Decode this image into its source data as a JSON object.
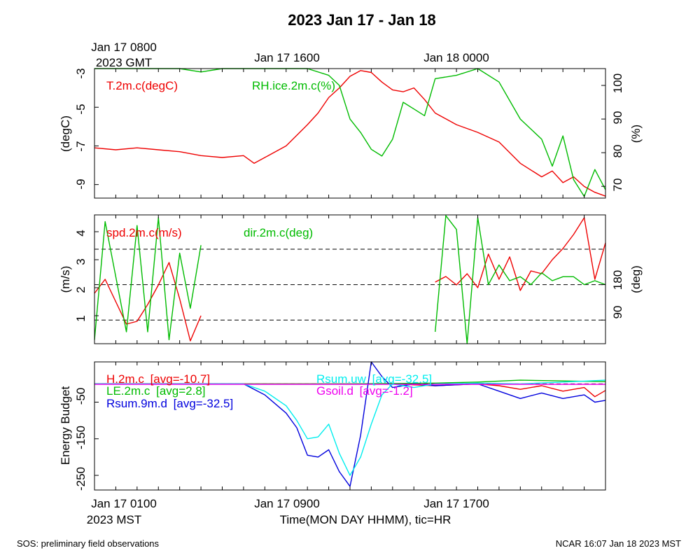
{
  "title": "2023 Jan 17 - Jan 18",
  "colors": {
    "red": "#ee0000",
    "green": "#00bb00",
    "blue": "#0000dd",
    "cyan": "#00eeee",
    "magenta": "#ee00ee",
    "black": "#000000"
  },
  "top_axis": {
    "labels": [
      "Jan 17 0800",
      "Jan 17 1600",
      "Jan 18 0000"
    ],
    "gmt_label": "2023 GMT"
  },
  "bottom_axis": {
    "labels": [
      "Jan 17 0100",
      "Jan 17 0900",
      "Jan 17 1700"
    ],
    "mst_label": "2023 MST",
    "xlabel": "Time(MON DAY HHMM), tic=HR"
  },
  "footer": {
    "left": "SOS: preliminary field observations",
    "right": "NCAR 16:07 Jan 18 2023 MST"
  },
  "chart_data": [
    {
      "type": "line",
      "xlim": [
        0,
        24
      ],
      "ylabel": "(degC)",
      "ylabel_right": "(%)",
      "ylim": [
        -9.7,
        -3
      ],
      "yticks": [
        "-3",
        "-5",
        "-7",
        "-9"
      ],
      "ylim_right": [
        66.5,
        105
      ],
      "yticks_right": [
        "100",
        "90",
        "80",
        "70"
      ],
      "series": [
        {
          "name": "T.2m.c(degC)",
          "axis": "left",
          "color": "red",
          "x": [
            0,
            1,
            2,
            3,
            4,
            5,
            6,
            7,
            7.5,
            8,
            9,
            10,
            10.5,
            11,
            11.5,
            12,
            12.5,
            13,
            13.5,
            14,
            14.5,
            15,
            15.5,
            16,
            16.5,
            17,
            18,
            19,
            20,
            21,
            21.5,
            22,
            22.5,
            23,
            23.5,
            24
          ],
          "y": [
            -7.1,
            -7.2,
            -7.1,
            -7.2,
            -7.3,
            -7.5,
            -7.6,
            -7.5,
            -7.9,
            -7.6,
            -7.0,
            -5.9,
            -5.3,
            -4.5,
            -4.0,
            -3.4,
            -3.1,
            -3.2,
            -3.7,
            -4.1,
            -4.2,
            -4.0,
            -4.6,
            -5.3,
            -5.6,
            -5.9,
            -6.3,
            -6.8,
            -7.9,
            -8.6,
            -8.3,
            -8.9,
            -8.6,
            -9.1,
            -9.4,
            -9.6
          ]
        },
        {
          "name": "RH.ice.2m.c(%)",
          "axis": "right",
          "color": "green",
          "x": [
            0,
            4,
            5,
            6,
            8,
            10,
            11,
            11.5,
            12,
            12.5,
            13,
            13.5,
            14,
            14.5,
            15,
            15.5,
            16,
            17,
            18,
            19,
            20,
            21,
            21.5,
            22,
            22.5,
            23,
            23.5,
            24
          ],
          "y": [
            105,
            105,
            104,
            105,
            105,
            105,
            103,
            100,
            90,
            86,
            81,
            79,
            84,
            95,
            93,
            91,
            102,
            103,
            105,
            101,
            90,
            84,
            76,
            85,
            72,
            67,
            75,
            69
          ]
        }
      ]
    },
    {
      "type": "line",
      "xlim": [
        0,
        24
      ],
      "ylabel": "(m/s)",
      "ylabel_right": "(deg)",
      "ylim": [
        0,
        4.6
      ],
      "yticks": [
        "1",
        "2",
        "3",
        "4"
      ],
      "ylim_right": [
        30,
        357
      ],
      "yticks_right": [
        "90",
        "180"
      ],
      "ref_lines_deg": [
        90,
        180,
        270
      ],
      "series": [
        {
          "name": "spd.2m.c(m/s)",
          "axis": "left",
          "color": "red",
          "segments": [
            {
              "x": [
                0,
                0.5,
                1,
                1.5,
                2,
                2.5,
                3,
                3.5,
                4,
                4.5,
                5
              ],
              "y": [
                1.8,
                2.3,
                1.5,
                0.7,
                0.8,
                1.4,
                2.1,
                2.9,
                1.6,
                0.1,
                1.0
              ]
            },
            {
              "x": [
                16,
                16.5,
                17,
                17.5,
                18,
                18.5,
                19,
                19.5,
                20,
                20.5,
                21,
                21.5,
                22,
                22.5,
                23,
                23.5,
                24
              ],
              "y": [
                2.2,
                2.4,
                2.1,
                2.5,
                2.0,
                3.2,
                2.3,
                3.1,
                1.9,
                2.6,
                2.5,
                3.0,
                3.4,
                3.9,
                4.5,
                2.3,
                3.6
              ]
            }
          ]
        },
        {
          "name": "dir.2m.c(deg)",
          "axis": "right",
          "color": "green",
          "segments": [
            {
              "x": [
                0,
                0.5,
                1,
                1.5,
                2,
                2.5,
                3,
                3.5,
                4,
                4.5,
                5
              ],
              "y": [
                40,
                340,
                200,
                60,
                330,
                60,
                350,
                40,
                260,
                120,
                280
              ]
            },
            {
              "x": [
                16,
                16.5,
                17,
                17.5,
                18,
                18.5,
                19,
                19.5,
                20,
                20.5,
                21,
                21.5,
                22,
                22.5,
                23,
                23.5,
                24
              ],
              "y": [
                60,
                355,
                320,
                30,
                350,
                180,
                230,
                190,
                200,
                180,
                210,
                190,
                200,
                200,
                180,
                190,
                180
              ]
            }
          ]
        }
      ]
    },
    {
      "type": "line",
      "xlim": [
        0,
        24
      ],
      "ylabel": "Energy Budget",
      "ylim": [
        -290,
        60
      ],
      "yticks": [
        "-50",
        "-150",
        "-250"
      ],
      "series": [
        {
          "name": "H.2m.c",
          "avg_label": "[avg=-10.7]",
          "color": "red",
          "x": [
            0,
            2,
            4,
            6,
            8,
            10,
            12,
            14,
            16,
            18,
            19,
            20,
            21,
            22,
            23,
            23.5,
            24
          ],
          "y": [
            0,
            0,
            0,
            0,
            0,
            0,
            0,
            0,
            -5,
            0,
            -5,
            -15,
            -5,
            -20,
            -10,
            -35,
            -18
          ]
        },
        {
          "name": "LE.2m.c",
          "avg_label": "[avg=2.8]",
          "color": "green",
          "x": [
            0,
            4,
            8,
            12,
            16,
            18,
            20,
            22,
            24
          ],
          "y": [
            0,
            0,
            0,
            0,
            2,
            5,
            10,
            8,
            6
          ]
        },
        {
          "name": "Rsum.9m.d",
          "avg_label": "[avg=-32.5]",
          "color": "blue",
          "x": [
            0,
            7,
            8,
            9,
            9.5,
            10,
            10.5,
            11,
            11.5,
            12,
            12.5,
            13,
            13.5,
            14,
            14.5,
            15,
            16,
            18,
            19,
            20,
            21,
            22,
            23,
            23.5,
            24
          ],
          "y": [
            0,
            0,
            -30,
            -80,
            -120,
            -195,
            -200,
            -180,
            -240,
            -280,
            -140,
            60,
            20,
            -10,
            -5,
            0,
            -5,
            0,
            -20,
            -40,
            -25,
            -40,
            -30,
            -50,
            -45
          ]
        },
        {
          "name": "Rsum.uw",
          "avg_label": "[avg=-32.5]",
          "color": "cyan",
          "x": [
            0,
            7,
            8,
            9,
            9.5,
            10,
            10.5,
            11,
            11.5,
            12,
            12.5,
            13,
            13.5,
            14,
            14.5,
            15,
            16,
            18,
            20,
            22,
            24
          ],
          "y": [
            0,
            0,
            -20,
            -60,
            -100,
            -150,
            -145,
            -110,
            -190,
            -250,
            -200,
            -110,
            -30,
            0,
            -5,
            -10,
            0,
            2,
            0,
            5,
            10
          ]
        },
        {
          "name": "Gsoil.d",
          "avg_label": "[avg=-1.2]",
          "color": "magenta",
          "x": [
            0,
            24
          ],
          "y": [
            -1.2,
            -1.2
          ]
        }
      ]
    }
  ]
}
